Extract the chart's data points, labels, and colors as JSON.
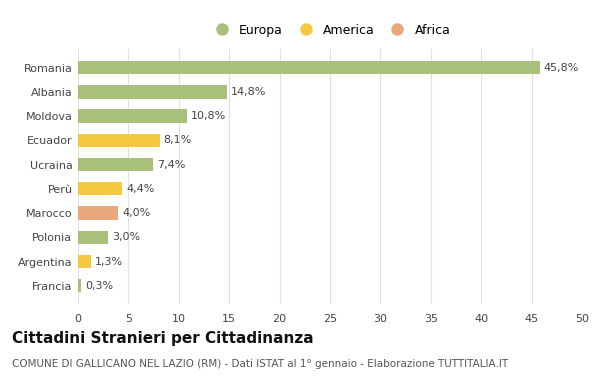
{
  "categories": [
    "Francia",
    "Argentina",
    "Polonia",
    "Marocco",
    "Perù",
    "Ucraina",
    "Ecuador",
    "Moldova",
    "Albania",
    "Romania"
  ],
  "values": [
    0.3,
    1.3,
    3.0,
    4.0,
    4.4,
    7.4,
    8.1,
    10.8,
    14.8,
    45.8
  ],
  "labels": [
    "0,3%",
    "1,3%",
    "3,0%",
    "4,0%",
    "4,4%",
    "7,4%",
    "8,1%",
    "10,8%",
    "14,8%",
    "45,8%"
  ],
  "colors": [
    "#a8c07a",
    "#f5c842",
    "#a8c07a",
    "#e8a87c",
    "#f5c842",
    "#a8c07a",
    "#f5c842",
    "#a8c07a",
    "#a8c07a",
    "#a8c07a"
  ],
  "legend": [
    {
      "label": "Europa",
      "color": "#a8c07a"
    },
    {
      "label": "America",
      "color": "#f5c842"
    },
    {
      "label": "Africa",
      "color": "#e8a87c"
    }
  ],
  "title": "Cittadini Stranieri per Cittadinanza",
  "subtitle": "COMUNE DI GALLICANO NEL LAZIO (RM) - Dati ISTAT al 1° gennaio - Elaborazione TUTTITALIA.IT",
  "xlim": [
    0,
    50
  ],
  "xticks": [
    0,
    5,
    10,
    15,
    20,
    25,
    30,
    35,
    40,
    45,
    50
  ],
  "background_color": "#ffffff",
  "grid_color": "#e0e0e0",
  "bar_height": 0.55,
  "title_fontsize": 11,
  "subtitle_fontsize": 7.5,
  "label_fontsize": 8,
  "tick_fontsize": 8,
  "legend_fontsize": 9
}
